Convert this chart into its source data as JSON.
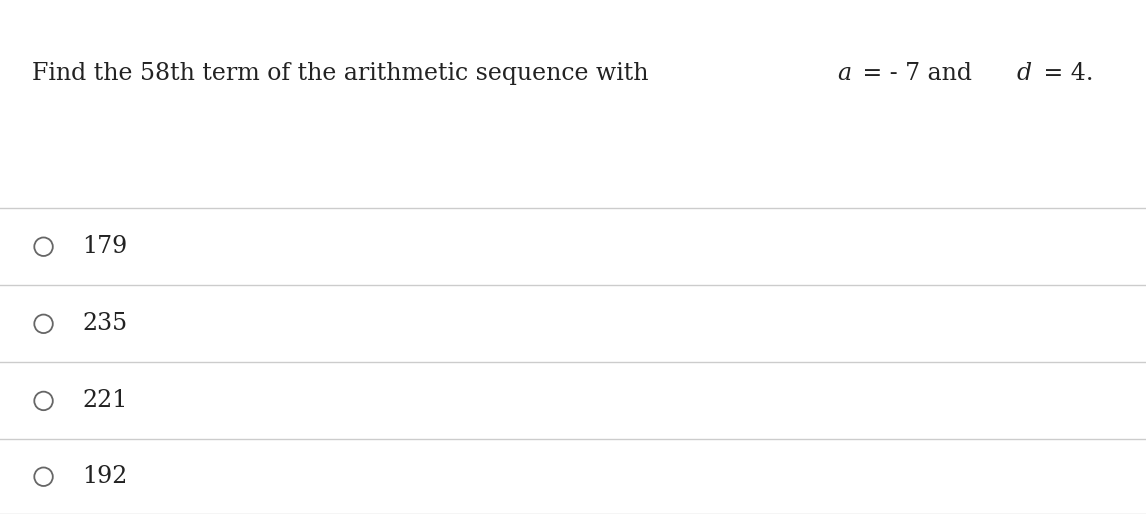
{
  "background_color": "#ffffff",
  "question_parts": [
    {
      "text": "Find the 58th term of the arithmetic sequence with ",
      "italic": false
    },
    {
      "text": "a",
      "italic": true
    },
    {
      "text": " = - 7 and ",
      "italic": false
    },
    {
      "text": "d",
      "italic": true
    },
    {
      "text": " = 4.",
      "italic": false
    }
  ],
  "choices": [
    "179",
    "235",
    "221",
    "192"
  ],
  "divider_color": "#cccccc",
  "text_color": "#222222",
  "circle_color": "#666666",
  "question_fontsize": 17,
  "choice_fontsize": 17,
  "figsize": [
    11.46,
    5.14
  ],
  "dpi": 100
}
